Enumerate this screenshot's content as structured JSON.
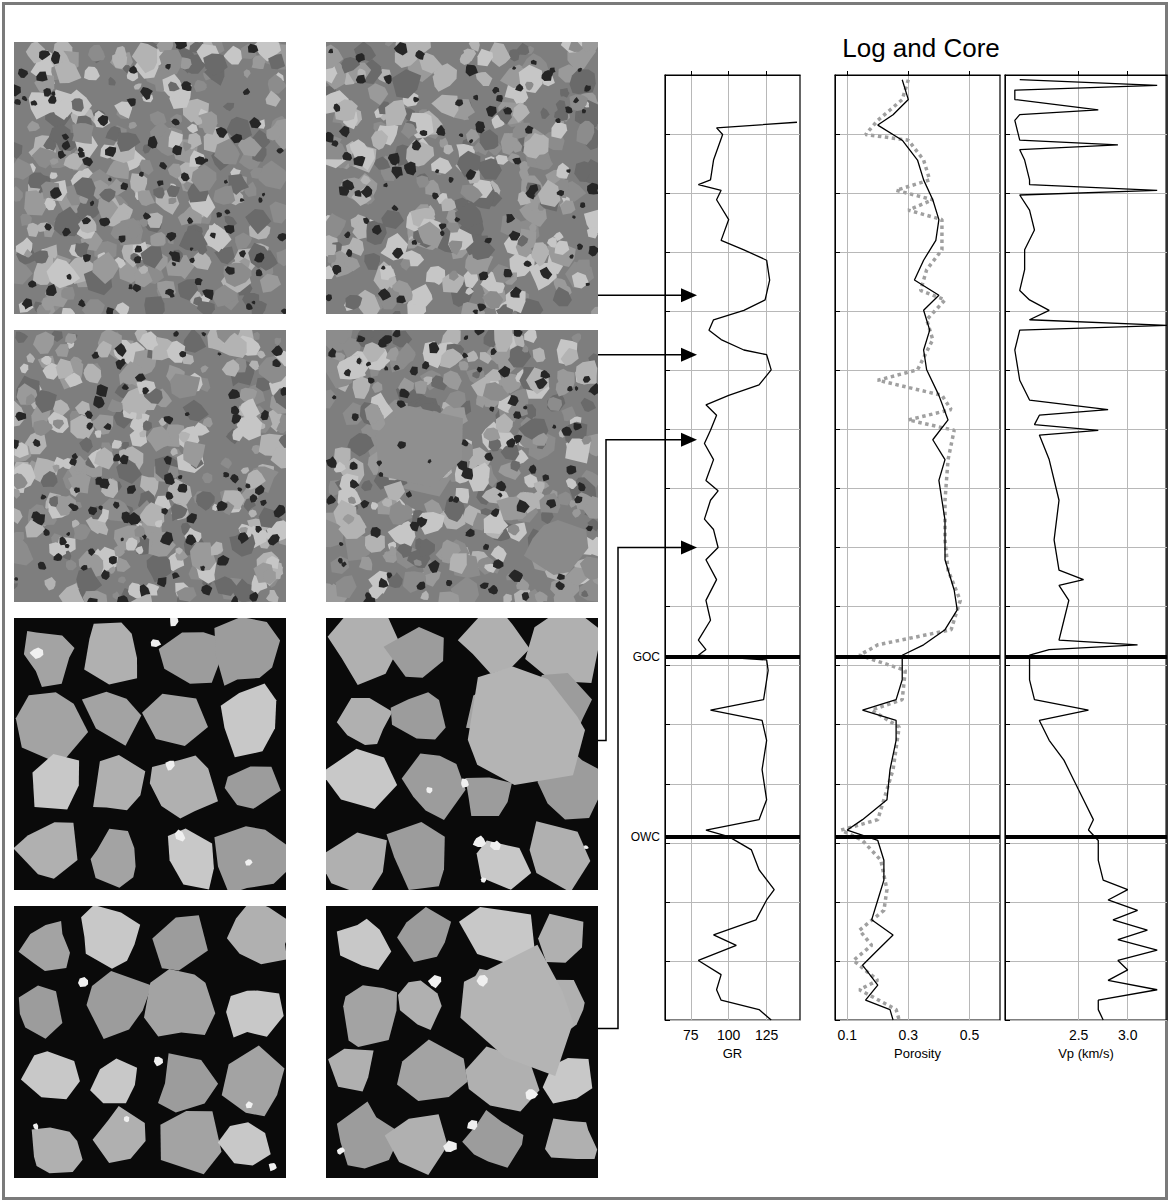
{
  "title": "Log and Core",
  "core_images": {
    "sample_depths": [
      23.3,
      29.6,
      38.6,
      50.0
    ]
  },
  "chart_data": [
    {
      "type": "line",
      "xlabel": "GR",
      "xlim": [
        58,
        147
      ],
      "xticks": [
        75,
        100,
        125
      ],
      "ylim": [
        0,
        100
      ],
      "yticks": [
        0,
        6.25,
        12.5,
        18.75,
        25,
        31.25,
        37.5,
        43.75,
        50,
        56.25,
        62.5,
        68.75,
        75,
        81.25,
        87.5,
        93.75,
        100
      ],
      "tick_labels": "x",
      "grid": true,
      "annotations": [
        {
          "label": "GOC",
          "depth": 61.6
        },
        {
          "label": "OWC",
          "depth": 80.6
        }
      ],
      "series": [
        {
          "color": "#000000",
          "line_style": "solid",
          "y": [
            5.0,
            5.6,
            6.3,
            9.0,
            11.1,
            11.6,
            12.2,
            13.2,
            15.3,
            17.5,
            18.5,
            19.6,
            21.7,
            23.8,
            24.9,
            25.9,
            27.0,
            28.0,
            29.1,
            29.6,
            31.2,
            32.8,
            33.9,
            34.9,
            36.0,
            37.6,
            39.0,
            40.7,
            42.9,
            44.0,
            45.0,
            47.0,
            48.1,
            50.0,
            51.3,
            53.4,
            55.6,
            57.7,
            59.8,
            60.8,
            61.4,
            61.9,
            63.0,
            66.1,
            67.2,
            68.3,
            70.4,
            73.5,
            76.7,
            78.8,
            79.9,
            80.6,
            82.0,
            84.1,
            86.2,
            87.3,
            89.4,
            91.0,
            92.1,
            93.7,
            95.2,
            96.8,
            97.9,
            98.9,
            100
          ],
          "x": [
            145,
            92,
            96,
            90,
            88,
            80,
            95,
            92,
            100,
            95,
            110,
            125,
            127,
            124,
            110,
            90,
            87,
            95,
            110,
            125,
            128,
            120,
            100,
            85,
            92,
            88,
            84,
            90,
            85,
            93,
            88,
            84,
            90,
            93,
            85,
            92,
            85,
            88,
            80,
            85,
            80,
            125,
            126,
            123,
            88,
            122,
            125,
            122,
            125,
            120,
            85,
            100,
            115,
            120,
            130,
            125,
            118,
            90,
            105,
            80,
            95,
            92,
            95,
            120,
            128
          ]
        }
      ]
    },
    {
      "type": "line",
      "xlabel": "Porosity",
      "xlim": [
        0.06,
        0.6
      ],
      "xticks": [
        0.1,
        0.3,
        0.5
      ],
      "ylim": [
        0,
        100
      ],
      "yticks": [
        0,
        6.25,
        12.5,
        18.75,
        25,
        31.25,
        37.5,
        43.75,
        50,
        56.25,
        62.5,
        68.75,
        75,
        81.25,
        87.5,
        93.75,
        100
      ],
      "tick_labels": "x",
      "grid": true,
      "series": [
        {
          "color": "#a0a0a0",
          "line_style": "dotted",
          "y": [
            0.5,
            2.6,
            3.7,
            4.8,
            6.3,
            6.9,
            9.0,
            11.1,
            12.2,
            13.2,
            14.3,
            15.3,
            18.5,
            20.6,
            22.8,
            23.8,
            25.9,
            28.0,
            31.2,
            32.3,
            33.9,
            35.4,
            36.5,
            37.6,
            40.7,
            45.0,
            49.2,
            52.4,
            55.6,
            58.7,
            60.3,
            61.4,
            63.0,
            66.1,
            67.2,
            69.0,
            73.5,
            78.8,
            79.9,
            81.0,
            83.1,
            86.2,
            88.4,
            90.5,
            92.1,
            93.7,
            95.8,
            96.8,
            98.9,
            100
          ],
          "x": [
            0.3,
            0.28,
            0.24,
            0.2,
            0.16,
            0.3,
            0.35,
            0.37,
            0.26,
            0.38,
            0.3,
            0.41,
            0.41,
            0.36,
            0.34,
            0.42,
            0.36,
            0.38,
            0.33,
            0.2,
            0.41,
            0.44,
            0.3,
            0.45,
            0.43,
            0.42,
            0.42,
            0.43,
            0.47,
            0.44,
            0.2,
            0.14,
            0.29,
            0.28,
            0.18,
            0.27,
            0.25,
            0.2,
            0.08,
            0.15,
            0.21,
            0.23,
            0.22,
            0.14,
            0.18,
            0.12,
            0.2,
            0.14,
            0.26,
            0.27
          ]
        },
        {
          "color": "#000000",
          "line_style": "solid",
          "y": [
            0.5,
            2.6,
            4.2,
            5.3,
            6.9,
            9.0,
            11.1,
            13.2,
            15.3,
            17.5,
            19.6,
            21.7,
            23.3,
            24.9,
            27.0,
            29.1,
            31.2,
            33.9,
            36.5,
            38.6,
            40.7,
            42.9,
            47.1,
            51.3,
            54.5,
            56.6,
            58.7,
            60.3,
            61.4,
            64.0,
            66.1,
            67.2,
            68.3,
            70.4,
            73.5,
            76.7,
            78.8,
            79.9,
            81.0,
            83.1,
            85.2,
            87.3,
            89.4,
            91.0,
            92.6,
            94.2,
            96.3,
            97.9,
            98.9,
            100
          ],
          "x": [
            0.28,
            0.3,
            0.25,
            0.2,
            0.28,
            0.33,
            0.35,
            0.38,
            0.4,
            0.39,
            0.35,
            0.32,
            0.4,
            0.35,
            0.37,
            0.35,
            0.36,
            0.4,
            0.43,
            0.38,
            0.42,
            0.4,
            0.42,
            0.42,
            0.45,
            0.46,
            0.42,
            0.35,
            0.28,
            0.28,
            0.26,
            0.15,
            0.26,
            0.26,
            0.24,
            0.23,
            0.15,
            0.1,
            0.2,
            0.22,
            0.22,
            0.2,
            0.18,
            0.25,
            0.2,
            0.15,
            0.2,
            0.16,
            0.24,
            0.25
          ]
        }
      ]
    },
    {
      "type": "line",
      "xlabel": "Vp (km/s)",
      "xlim": [
        1.75,
        3.4
      ],
      "xticks": [
        2.5,
        {
          "value": 3,
          "label": "3.0"
        }
      ],
      "ylim": [
        0,
        100
      ],
      "yticks": [
        0,
        6.25,
        12.5,
        18.75,
        25,
        31.25,
        37.5,
        43.75,
        50,
        56.25,
        62.5,
        68.75,
        75,
        81.25,
        87.5,
        93.75,
        100
      ],
      "tick_labels": "x",
      "grid": true,
      "series": [
        {
          "color": "#000000",
          "line_style": "solid",
          "y": [
            0.5,
            1.1,
            1.6,
            2.6,
            3.7,
            4.2,
            4.8,
            6.9,
            7.4,
            7.9,
            9.0,
            11.1,
            11.6,
            12.2,
            12.7,
            14.3,
            16.4,
            18.5,
            20.6,
            22.8,
            23.8,
            24.9,
            25.9,
            26.5,
            27.0,
            29.1,
            32.3,
            34.4,
            35.4,
            36.0,
            37.0,
            37.6,
            38.1,
            40.7,
            45.0,
            49.2,
            52.4,
            53.4,
            54.0,
            55.6,
            57.7,
            59.8,
            60.3,
            60.8,
            61.4,
            64.0,
            66.1,
            67.2,
            68.3,
            70.4,
            72.5,
            74.6,
            76.7,
            78.8,
            79.9,
            81.0,
            83.1,
            85.2,
            86.2,
            87.3,
            88.4,
            89.4,
            90.5,
            91.5,
            92.6,
            93.7,
            94.7,
            95.8,
            96.8,
            97.9,
            98.9,
            100
          ],
          "x": [
            1.9,
            3.3,
            1.85,
            1.85,
            2.7,
            1.9,
            1.85,
            1.9,
            2.9,
            1.9,
            1.95,
            2.0,
            2.0,
            3.3,
            1.9,
            2.0,
            2.05,
            1.95,
            1.95,
            1.9,
            2.0,
            2.2,
            2.0,
            3.4,
            1.9,
            1.85,
            1.9,
            2.0,
            2.8,
            2.1,
            2.05,
            2.7,
            2.1,
            2.2,
            2.3,
            2.25,
            2.3,
            2.55,
            2.3,
            2.4,
            2.35,
            2.3,
            3.1,
            2.2,
            2.0,
            2.0,
            2.05,
            2.6,
            2.1,
            2.2,
            2.35,
            2.45,
            2.55,
            2.65,
            2.6,
            2.7,
            2.7,
            2.75,
            3.0,
            2.8,
            3.1,
            2.85,
            3.2,
            2.9,
            3.3,
            2.9,
            3.0,
            2.8,
            3.3,
            2.7,
            2.7,
            2.75
          ]
        }
      ]
    }
  ]
}
